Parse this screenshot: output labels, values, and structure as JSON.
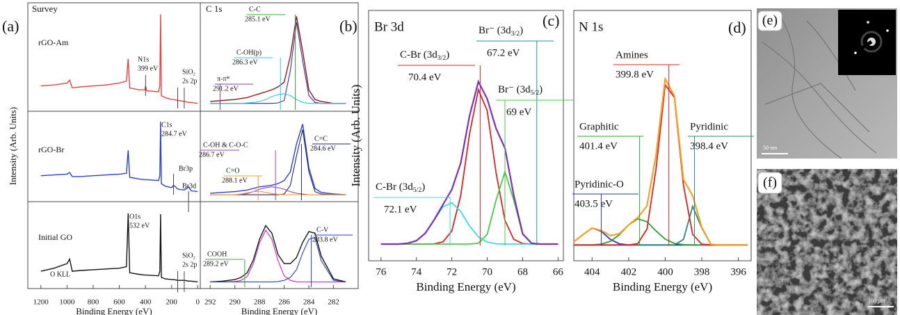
{
  "chart_data": [
    {
      "type": "line",
      "panel_label": "(a)",
      "title": "Survey",
      "xlabel": "Binding Energy (eV)",
      "ylabel": "Intensity (Arb. Units)",
      "xlim": [
        1300,
        -20
      ],
      "xticks": [
        1200,
        1000,
        800,
        600,
        400,
        200,
        0
      ],
      "x": [
        1200,
        1100,
        1000,
        980,
        960,
        900,
        800,
        700,
        600,
        545,
        532,
        520,
        450,
        405,
        399,
        390,
        300,
        290,
        284,
        278,
        250,
        200,
        185,
        150,
        100,
        70,
        50,
        0
      ],
      "subplots": [
        {
          "label": "rGO-Am",
          "ylim": [
            0,
            105
          ],
          "series": [
            {
              "color": "#e8413c",
              "values": [
                24,
                25,
                27,
                30,
                22,
                23,
                24,
                25,
                27,
                29,
                52,
                22,
                20,
                20,
                24,
                19,
                18,
                24,
                98,
                14,
                12,
                10,
                10,
                9,
                8,
                7,
                7,
                6
              ]
            }
          ],
          "annotations": [
            {
              "text": "N1s",
              "label": "399 eV",
              "x": 399
            },
            {
              "text": "SiO₂",
              "label": "2s 2p",
              "x": [
                153,
                103
              ]
            }
          ]
        },
        {
          "label": "rGO-Br",
          "ylim": [
            0,
            105
          ],
          "series": [
            {
              "color": "#2b3fd0",
              "values": [
                30,
                31,
                32,
                34,
                29,
                29,
                30,
                31,
                32,
                33,
                62,
                28,
                26,
                25,
                25,
                25,
                24,
                30,
                98,
                20,
                17,
                15,
                18,
                13,
                12,
                16,
                11,
                10
              ]
            }
          ],
          "annotations": [
            {
              "text": "C1s",
              "label": "284.7 eV"
            },
            {
              "text": "Br3p",
              "x": 185
            },
            {
              "text": "Br3d",
              "x": 70
            }
          ]
        },
        {
          "label": "Initial GO",
          "ylim": [
            0,
            105
          ],
          "series": [
            {
              "color": "#111111",
              "values": [
                20,
                24,
                30,
                36,
                20,
                21,
                22,
                23,
                24,
                26,
                96,
                18,
                16,
                15,
                15,
                15,
                14,
                20,
                95,
                12,
                10,
                9,
                9,
                8,
                8,
                7,
                7,
                6
              ]
            }
          ],
          "annotations": [
            {
              "text": "O1s",
              "label": "532 eV"
            },
            {
              "text": "O KLL"
            },
            {
              "text": "SiO₂",
              "label": "2s 2p",
              "x": [
                153,
                103
              ]
            }
          ]
        }
      ]
    },
    {
      "type": "line",
      "panel_label": "(b)",
      "title": "C 1s",
      "xlabel": "Binding Energy (eV)",
      "xlim": [
        292.8,
        280
      ],
      "xticks": [
        292,
        290,
        288,
        286,
        284,
        282
      ],
      "x": [
        292,
        291,
        290,
        289.5,
        289,
        288.5,
        288,
        287.5,
        287,
        286.5,
        286,
        285.5,
        285,
        284.5,
        284,
        283.5,
        283,
        282,
        281
      ],
      "subplots": [
        {
          "ylim": [
            0,
            105
          ],
          "series": [
            {
              "color": "#8b1a1a",
              "values": [
                8,
                9,
                10,
                11,
                12,
                14,
                16,
                18,
                20,
                23,
                28,
                55,
                96,
                60,
                20,
                10,
                8,
                6,
                6
              ]
            },
            {
              "color": "#3b2aa0",
              "values": [
                6,
                6,
                6,
                6,
                6,
                6,
                6,
                6,
                6,
                6.5,
                9,
                40,
                90,
                50,
                14,
                7,
                6,
                6,
                6
              ]
            },
            {
              "color": "#2ac8d8",
              "values": [
                6,
                6,
                6,
                6,
                6.5,
                7,
                8,
                10,
                13,
                15,
                16,
                14,
                10,
                7,
                6,
                6,
                6,
                6,
                6
              ]
            }
          ],
          "annotations": [
            {
              "text": "C-C",
              "label": "285.1 eV",
              "x": 285.1,
              "color": "#33aa33"
            },
            {
              "text": "C-OH(p)",
              "label": "286.3 eV",
              "x": 286.3,
              "color": "#2ac8d8"
            },
            {
              "text": "π-π*",
              "label": "291.2 eV",
              "x": 291.2,
              "color": "#7a3ab8"
            }
          ]
        },
        {
          "ylim": [
            0,
            105
          ],
          "series": [
            {
              "color": "#2b3fd0",
              "values": [
                8,
                9,
                10,
                11,
                12,
                14,
                16,
                17,
                18,
                20,
                24,
                35,
                70,
                95,
                40,
                14,
                9,
                7,
                6
              ]
            },
            {
              "color": "#1a237e",
              "values": [
                6,
                6,
                6,
                6,
                6,
                6,
                6,
                6,
                6,
                6,
                7,
                18,
                55,
                88,
                35,
                10,
                7,
                6,
                6
              ]
            },
            {
              "color": "#a040c0",
              "values": [
                6,
                6,
                6,
                6.5,
                7.5,
                10,
                13,
                15,
                16,
                15,
                13,
                10,
                8,
                7,
                6,
                6,
                6,
                6,
                6
              ]
            },
            {
              "color": "#f0a020",
              "values": [
                6,
                6,
                6.2,
                7,
                8.5,
                10,
                10.5,
                9,
                7.5,
                6.5,
                6,
                6,
                6,
                6,
                6,
                6,
                6,
                6,
                6
              ]
            }
          ],
          "annotations": [
            {
              "text": "C-OH & C-O-C",
              "label": "286.7 eV",
              "x": 286.7,
              "color": "#a040c0"
            },
            {
              "text": "C=O",
              "label": "288.1 eV",
              "x": 288.1,
              "color": "#f0a020"
            },
            {
              "text": "C=C",
              "label": "284.6 eV",
              "x": 284.6,
              "color": "#1a237e"
            }
          ]
        },
        {
          "ylim": [
            0,
            105
          ],
          "series": [
            {
              "color": "#111111",
              "values": [
                6,
                7,
                9,
                12,
                18,
                35,
                62,
                80,
                70,
                42,
                30,
                30,
                38,
                58,
                72,
                70,
                40,
                10,
                6
              ]
            },
            {
              "color": "#d020c0",
              "values": [
                6,
                6,
                6.5,
                8,
                13,
                30,
                57,
                74,
                62,
                34,
                14,
                8,
                6,
                6,
                6,
                6,
                6,
                6,
                6
              ]
            },
            {
              "color": "#2040c0",
              "values": [
                6,
                6,
                6,
                6,
                6,
                6,
                6,
                6,
                6,
                6.5,
                8,
                12,
                22,
                44,
                62,
                64,
                34,
                8,
                6
              ]
            }
          ],
          "annotations": [
            {
              "text": "COOH",
              "label": "289.2 eV",
              "x": 289.2,
              "color": "#33aa33"
            },
            {
              "text": "C-V",
              "label": "283.8 eV",
              "x": 283.8,
              "color": "#2040c0"
            }
          ]
        }
      ]
    },
    {
      "type": "line",
      "panel_label": "(c)",
      "title": "Br 3d",
      "xlabel": "Binding Energy (eV)",
      "ylabel": "Intensity (Arb. Units)",
      "xlim": [
        76.7,
        65.7
      ],
      "xticks": [
        76,
        74,
        72,
        70,
        68,
        66
      ],
      "ylim": [
        0,
        90
      ],
      "x": [
        76,
        75.5,
        75,
        74.5,
        74,
        73.5,
        73,
        72.5,
        72,
        71.5,
        71,
        70.5,
        70,
        69.5,
        69,
        68.5,
        68,
        67.5,
        67,
        66.5,
        66
      ],
      "series": [
        {
          "color": "#e02020",
          "values": [
            6,
            6,
            6,
            6,
            6,
            6,
            6.1,
            6.8,
            10.7,
            23.4,
            45.6,
            61.5,
            54,
            31.6,
            14.5,
            7.7,
            6.2,
            6,
            6,
            6,
            6
          ]
        },
        {
          "color": "#44cc44",
          "values": [
            6,
            6,
            6,
            6,
            6,
            6,
            6,
            6,
            6,
            6,
            6,
            6.3,
            9.5,
            21.8,
            32,
            21.8,
            9.5,
            6.3,
            6,
            6,
            6
          ]
        },
        {
          "color": "#33dddd",
          "values": [
            6,
            6,
            6,
            6.3,
            7.2,
            9.9,
            14.6,
            19.4,
            20.9,
            17.7,
            12.5,
            8.6,
            6.7,
            6.1,
            6,
            6,
            6,
            6,
            6,
            6,
            6
          ]
        },
        {
          "color": "#7b2fbe",
          "values": [
            6,
            6,
            6,
            6.3,
            7.2,
            9.9,
            14.7,
            20.2,
            25.6,
            35.1,
            52.1,
            64.4,
            58.2,
            47.5,
            40.5,
            23.5,
            9.7,
            6.3,
            6,
            6,
            6
          ]
        }
      ],
      "annotations": [
        {
          "text": "C-Br (3d",
          "sub": "3/2",
          "tail": ")",
          "label": "70.4 eV",
          "x": 70.4,
          "color": "#e02020"
        },
        {
          "text": "Br⁻ (3d",
          "sub": "3/2",
          "tail": ")",
          "label": "67.2 eV",
          "x": 67.2,
          "color": "#1f8fb4"
        },
        {
          "text": "Br⁻ (3d",
          "sub": "5/2",
          "tail": ")",
          "label": "69 eV",
          "x": 69,
          "color": "#44cc44"
        },
        {
          "text": "C-Br (3d",
          "sub": "5/2",
          "tail": ")",
          "label": "72.1 eV",
          "x": 72.1,
          "color": "#33dddd"
        }
      ]
    },
    {
      "type": "line",
      "panel_label": "(d)",
      "title": "N 1s",
      "xlabel": "Binding Energy (eV)",
      "xlim": [
        405,
        395.3
      ],
      "xticks": [
        404,
        402,
        400,
        398,
        396
      ],
      "ylim": [
        0,
        95
      ],
      "x": [
        405,
        404.5,
        404,
        403.5,
        403,
        402.5,
        402,
        401.5,
        401,
        400.5,
        400,
        399.5,
        399,
        398.5,
        398,
        397.5,
        397,
        396.5,
        396,
        395.5
      ],
      "series": [
        {
          "color": "#2233cc",
          "values": [
            7.2,
            9.9,
            12.4,
            11.2,
            8.1,
            6.4,
            6,
            6,
            6,
            6,
            6,
            6,
            6,
            6,
            6,
            6,
            6,
            6,
            6,
            6
          ]
        },
        {
          "color": "#2e9e2e",
          "values": [
            6,
            6,
            6,
            6.3,
            7.4,
            9.9,
            13.6,
            15.9,
            14.8,
            11.3,
            8.2,
            6.6,
            6.1,
            6,
            6,
            6,
            6,
            6,
            6,
            6
          ]
        },
        {
          "color": "#2a8a7a",
          "values": [
            6,
            6,
            6,
            6,
            6,
            6,
            6,
            6,
            6,
            6,
            6,
            6,
            8.1,
            20.7,
            12.4,
            6.2,
            6,
            6,
            6,
            6
          ]
        },
        {
          "color": "#e02020",
          "values": [
            6,
            6,
            6,
            6,
            6,
            6,
            6,
            6.5,
            12,
            34.9,
            66.8,
            62,
            28.6,
            10,
            6.3,
            6,
            6,
            6,
            6,
            6
          ]
        },
        {
          "color": "#f7a021",
          "values": [
            7.2,
            9.9,
            12.4,
            11.5,
            9.5,
            10.3,
            13.6,
            16.4,
            20.8,
            40.2,
            69,
            62.6,
            30.8,
            24.7,
            12.7,
            6.2,
            6,
            6,
            6,
            6
          ]
        }
      ],
      "annotations": [
        {
          "text": "Amines",
          "label": "399.8 eV",
          "x": 399.8,
          "color": "#e02020"
        },
        {
          "text": "Graphitic",
          "label": "401.4 eV",
          "x": 401.4,
          "color": "#2e9e2e"
        },
        {
          "text": "Pyridinic",
          "label": "398.4 eV",
          "x": 398.4,
          "color": "#2a8a7a"
        },
        {
          "text": "Pyridinic-O",
          "label": "403.5 eV",
          "x": 403.5,
          "color": "#2233cc"
        }
      ]
    }
  ],
  "images": [
    {
      "panel_label": "(e)",
      "scale_bar": "50 nm"
    },
    {
      "panel_label": "(f)",
      "scale_bar": "100 μm"
    }
  ]
}
